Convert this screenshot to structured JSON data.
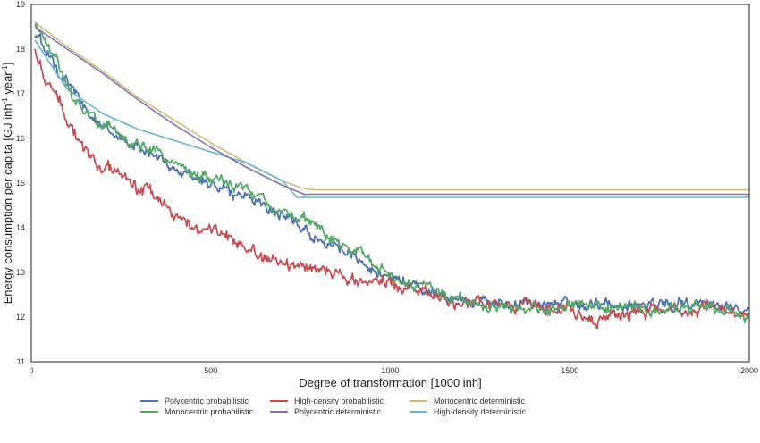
{
  "chart_data": {
    "type": "line",
    "xlabel": "Degree of transformation [1000 inh]",
    "ylabel": "Energy consumption per capita [GJ inh",
    "ylabel_sup1": "-1",
    "ylabel_mid": " year",
    "ylabel_sup2": "-1",
    "ylabel_end": "]",
    "xlim": [
      0,
      2000
    ],
    "ylim": [
      11,
      19
    ],
    "x_ticks": [
      0,
      500,
      1000,
      1500,
      2000
    ],
    "y_ticks": [
      11,
      12,
      13,
      14,
      15,
      16,
      17,
      18,
      19
    ],
    "grid": false,
    "legend_position": "bottom",
    "series": [
      {
        "name": "Polycentric probabilistic",
        "color": "#4c72b0",
        "noise": 0.14,
        "points": [
          [
            10,
            18.3
          ],
          [
            50,
            17.9
          ],
          [
            100,
            17.3
          ],
          [
            150,
            16.6
          ],
          [
            200,
            16.3
          ],
          [
            250,
            16.0
          ],
          [
            300,
            15.8
          ],
          [
            350,
            15.6
          ],
          [
            400,
            15.3
          ],
          [
            450,
            15.15
          ],
          [
            500,
            15.0
          ],
          [
            550,
            14.85
          ],
          [
            600,
            14.7
          ],
          [
            650,
            14.55
          ],
          [
            700,
            14.3
          ],
          [
            750,
            14.05
          ],
          [
            800,
            13.8
          ],
          [
            850,
            13.55
          ],
          [
            900,
            13.3
          ],
          [
            950,
            13.05
          ],
          [
            1000,
            12.9
          ],
          [
            1050,
            12.75
          ],
          [
            1100,
            12.6
          ],
          [
            1150,
            12.5
          ],
          [
            1200,
            12.4
          ],
          [
            1250,
            12.35
          ],
          [
            1300,
            12.3
          ],
          [
            1400,
            12.28
          ],
          [
            1500,
            12.3
          ],
          [
            1600,
            12.3
          ],
          [
            1700,
            12.3
          ],
          [
            1800,
            12.3
          ],
          [
            1900,
            12.28
          ],
          [
            2000,
            12.25
          ]
        ]
      },
      {
        "name": "High-density probabilistic",
        "color": "#c44e52",
        "noise": 0.16,
        "points": [
          [
            10,
            18.0
          ],
          [
            50,
            17.3
          ],
          [
            100,
            16.4
          ],
          [
            150,
            15.7
          ],
          [
            200,
            15.4
          ],
          [
            250,
            15.2
          ],
          [
            300,
            14.9
          ],
          [
            350,
            14.6
          ],
          [
            400,
            14.3
          ],
          [
            450,
            14.1
          ],
          [
            500,
            13.95
          ],
          [
            550,
            13.8
          ],
          [
            600,
            13.6
          ],
          [
            650,
            13.4
          ],
          [
            700,
            13.25
          ],
          [
            750,
            13.15
          ],
          [
            800,
            13.05
          ],
          [
            850,
            12.95
          ],
          [
            900,
            12.88
          ],
          [
            950,
            12.8
          ],
          [
            1000,
            12.72
          ],
          [
            1050,
            12.6
          ],
          [
            1100,
            12.52
          ],
          [
            1150,
            12.45
          ],
          [
            1200,
            12.38
          ],
          [
            1300,
            12.3
          ],
          [
            1400,
            12.22
          ],
          [
            1500,
            12.15
          ],
          [
            1600,
            11.95
          ],
          [
            1700,
            12.1
          ],
          [
            1800,
            12.2
          ],
          [
            1900,
            12.2
          ],
          [
            2000,
            12.15
          ]
        ]
      },
      {
        "name": "Monocentric deterministic",
        "color": "#ccb974",
        "noise": 0,
        "points": [
          [
            10,
            18.6
          ],
          [
            100,
            18.05
          ],
          [
            200,
            17.5
          ],
          [
            300,
            16.9
          ],
          [
            400,
            16.4
          ],
          [
            500,
            15.9
          ],
          [
            600,
            15.45
          ],
          [
            700,
            15.05
          ],
          [
            750,
            14.9
          ],
          [
            780,
            14.85
          ],
          [
            2000,
            14.85
          ]
        ]
      },
      {
        "name": "High-density deterministic",
        "color": "#64b5cd",
        "noise": 0,
        "points": [
          [
            10,
            18.2
          ],
          [
            100,
            17.1
          ],
          [
            200,
            16.55
          ],
          [
            300,
            16.2
          ],
          [
            400,
            15.95
          ],
          [
            500,
            15.7
          ],
          [
            600,
            15.45
          ],
          [
            700,
            15.05
          ],
          [
            740,
            14.68
          ],
          [
            2000,
            14.68
          ]
        ]
      },
      {
        "name": "Monocentric probabilistic",
        "color": "#55a868",
        "noise": 0.14,
        "points": [
          [
            10,
            18.5
          ],
          [
            50,
            18.0
          ],
          [
            100,
            17.2
          ],
          [
            150,
            16.6
          ],
          [
            200,
            16.3
          ],
          [
            250,
            16.05
          ],
          [
            300,
            15.85
          ],
          [
            350,
            15.65
          ],
          [
            400,
            15.4
          ],
          [
            450,
            15.25
          ],
          [
            500,
            15.1
          ],
          [
            550,
            14.95
          ],
          [
            600,
            14.8
          ],
          [
            650,
            14.65
          ],
          [
            700,
            14.45
          ],
          [
            750,
            14.25
          ],
          [
            800,
            14.0
          ],
          [
            850,
            13.75
          ],
          [
            900,
            13.5
          ],
          [
            950,
            13.3
          ],
          [
            1000,
            13.0
          ],
          [
            1050,
            12.8
          ],
          [
            1100,
            12.6
          ],
          [
            1150,
            12.45
          ],
          [
            1200,
            12.35
          ],
          [
            1300,
            12.25
          ],
          [
            1400,
            12.2
          ],
          [
            1500,
            12.2
          ],
          [
            1600,
            12.25
          ],
          [
            1700,
            12.2
          ],
          [
            1800,
            12.2
          ],
          [
            1900,
            12.2
          ],
          [
            2000,
            12.0
          ]
        ]
      },
      {
        "name": "Polycentric deterministic",
        "color": "#8172b2",
        "noise": 0,
        "points": [
          [
            10,
            18.5
          ],
          [
            100,
            18.0
          ],
          [
            200,
            17.45
          ],
          [
            300,
            16.85
          ],
          [
            400,
            16.3
          ],
          [
            500,
            15.8
          ],
          [
            600,
            15.35
          ],
          [
            700,
            14.95
          ],
          [
            760,
            14.75
          ],
          [
            2000,
            14.75
          ]
        ]
      }
    ],
    "legend_order": [
      0,
      4,
      1,
      5,
      2,
      3
    ]
  }
}
